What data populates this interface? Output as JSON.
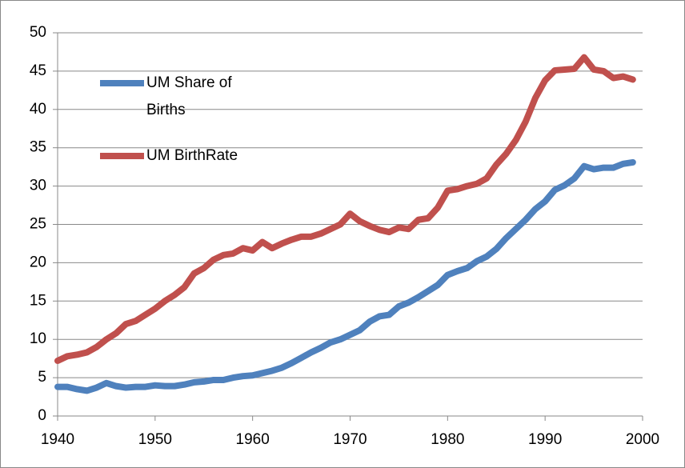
{
  "chart_data": {
    "type": "line",
    "x": [
      1940,
      1941,
      1942,
      1943,
      1944,
      1945,
      1946,
      1947,
      1948,
      1949,
      1950,
      1951,
      1952,
      1953,
      1954,
      1955,
      1956,
      1957,
      1958,
      1959,
      1960,
      1961,
      1962,
      1963,
      1964,
      1965,
      1966,
      1967,
      1968,
      1969,
      1970,
      1971,
      1972,
      1973,
      1974,
      1975,
      1976,
      1977,
      1978,
      1979,
      1980,
      1981,
      1982,
      1983,
      1984,
      1985,
      1986,
      1987,
      1988,
      1989,
      1990,
      1991,
      1992,
      1993,
      1994,
      1995,
      1996,
      1997,
      1998,
      1999
    ],
    "series": [
      {
        "name": "UM Share of Births",
        "color": "#4f81bd",
        "values": [
          3.8,
          3.8,
          3.5,
          3.3,
          3.7,
          4.3,
          3.9,
          3.7,
          3.8,
          3.8,
          4.0,
          3.9,
          3.9,
          4.1,
          4.4,
          4.5,
          4.7,
          4.7,
          5.0,
          5.2,
          5.3,
          5.6,
          5.9,
          6.3,
          6.9,
          7.6,
          8.3,
          8.9,
          9.6,
          10.0,
          10.6,
          11.2,
          12.3,
          13.0,
          13.2,
          14.3,
          14.8,
          15.5,
          16.3,
          17.1,
          18.4,
          18.9,
          19.3,
          20.2,
          20.8,
          21.8,
          23.2,
          24.4,
          25.6,
          27.0,
          28.0,
          29.5,
          30.1,
          31.0,
          32.6,
          32.2,
          32.4,
          32.4,
          32.9,
          33.1
        ]
      },
      {
        "name": "UM BirthRate",
        "color": "#c0504d",
        "values": [
          7.2,
          7.8,
          8.0,
          8.3,
          9.0,
          10.0,
          10.8,
          12.0,
          12.4,
          13.2,
          14.0,
          15.0,
          15.8,
          16.8,
          18.6,
          19.3,
          20.4,
          21.0,
          21.2,
          21.9,
          21.6,
          22.7,
          21.9,
          22.5,
          23.0,
          23.4,
          23.4,
          23.8,
          24.4,
          25.0,
          26.4,
          25.4,
          24.8,
          24.3,
          24.0,
          24.6,
          24.4,
          25.6,
          25.8,
          27.2,
          29.4,
          29.6,
          30.0,
          30.3,
          31.0,
          32.8,
          34.2,
          36.0,
          38.4,
          41.5,
          43.8,
          45.1,
          45.2,
          45.3,
          46.8,
          45.2,
          45.0,
          44.1,
          44.3,
          43.9
        ]
      }
    ],
    "xlim": [
      1940,
      2000
    ],
    "xticks": [
      1940,
      1950,
      1960,
      1970,
      1980,
      1990,
      2000
    ],
    "ylim": [
      0,
      50
    ],
    "yticks": [
      0,
      5,
      10,
      15,
      20,
      25,
      30,
      35,
      40,
      45,
      50
    ],
    "grid": true,
    "legend": "upper left"
  }
}
